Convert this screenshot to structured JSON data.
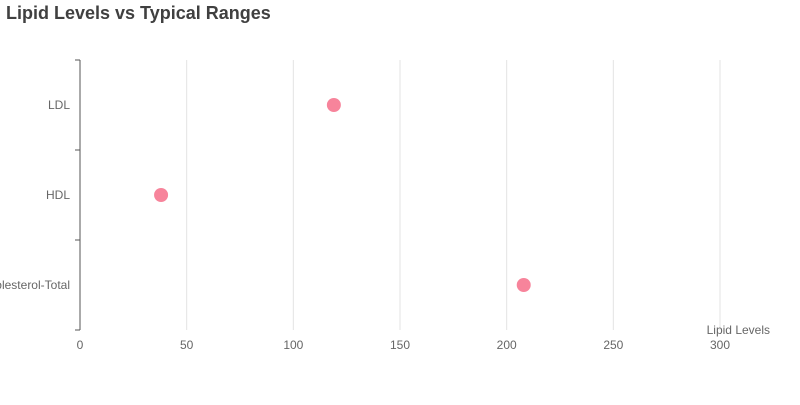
{
  "chart_data": {
    "type": "scatter",
    "title": "Lipid Levels vs Typical Ranges",
    "xlabel": "Lipid Levels",
    "ylabel": "",
    "categories": [
      "LDL",
      "HDL",
      "Cholesterol-Total"
    ],
    "xlim": [
      0,
      300
    ],
    "x_ticks": [
      0,
      50,
      100,
      150,
      200,
      250,
      300
    ],
    "grid": true,
    "series": [
      {
        "values": [
          119,
          38,
          208
        ],
        "color": "#f7849b"
      }
    ]
  }
}
